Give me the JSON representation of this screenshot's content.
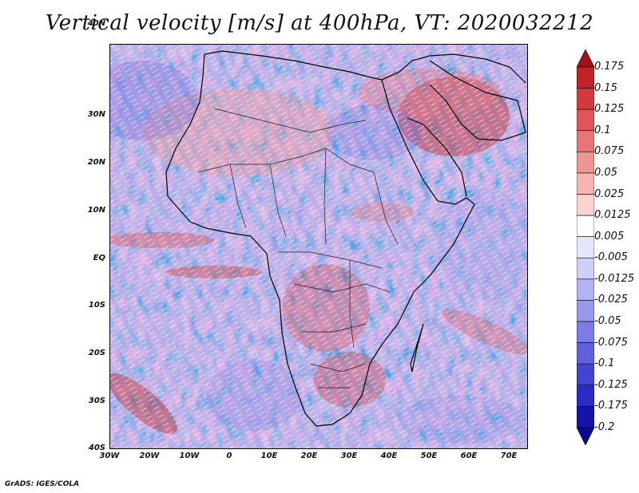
{
  "title": "Vertical velocity [m/s] at 400hPa, VT: 2020032212",
  "credit": "GrADS: IGES/COLA",
  "map": {
    "lat_labels": [
      "40N",
      "30N",
      "20N",
      "10N",
      "EQ",
      "10S",
      "20S",
      "30S",
      "40S"
    ],
    "lon_labels": [
      "30W",
      "20W",
      "10W",
      "0",
      "10E",
      "20E",
      "30E",
      "40E",
      "50E",
      "60E",
      "70E"
    ],
    "lat_range": [
      -40,
      45
    ],
    "lon_range": [
      -30,
      75
    ]
  },
  "colorbar": {
    "levels": [
      "0.175",
      "0.15",
      "0.125",
      "0.1",
      "0.075",
      "0.05",
      "0.025",
      "0.0125",
      "0.005",
      "-0.005",
      "-0.0125",
      "-0.025",
      "-0.05",
      "-0.075",
      "-0.1",
      "-0.125",
      "-0.175",
      "-0.2"
    ],
    "colors": [
      "#a01418",
      "#c02226",
      "#d43a3c",
      "#e05656",
      "#e87676",
      "#f09494",
      "#f6b4b2",
      "#fad2d0",
      "#ffffff",
      "#e6e6fa",
      "#d0d0f6",
      "#b4b4f2",
      "#9898ec",
      "#7c7ce6",
      "#6060de",
      "#4444d4",
      "#2a2ac4",
      "#1414a8",
      "#0a0a90"
    ]
  }
}
